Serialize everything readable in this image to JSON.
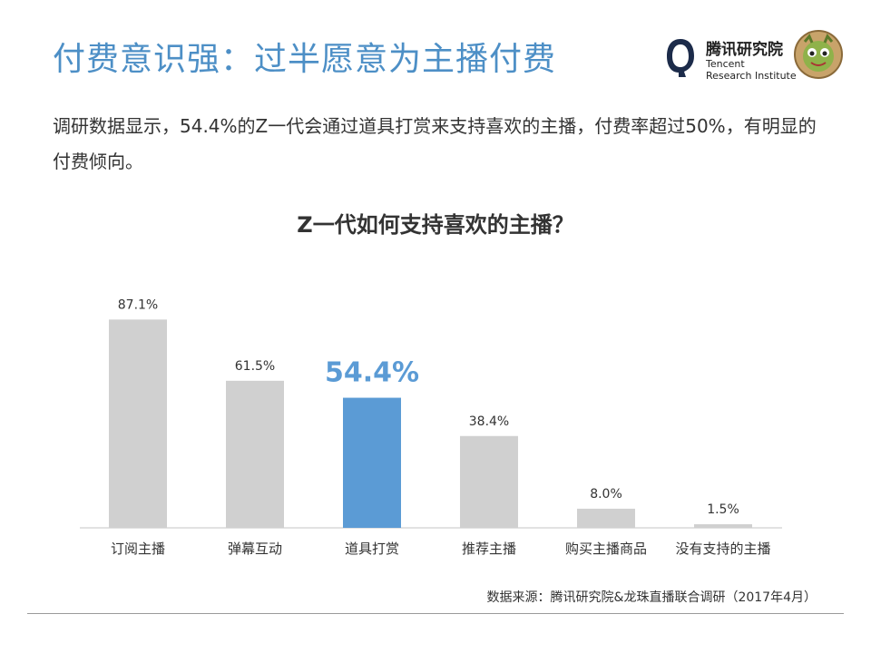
{
  "slide": {
    "title": "付费意识强：过半愿意为主播付费",
    "intro": "调研数据显示，54.4%的Z一代会通过道具打赏来支持喜欢的主播，付费率超过50%，有明显的付费倾向。",
    "source": "数据来源：腾讯研究院&龙珠直播联合调研（2017年4月）"
  },
  "logo": {
    "name_cn": "腾讯研究院",
    "name_en_line1": "Tencent",
    "name_en_line2": "Research Institute",
    "icon": "penguin-logo-icon",
    "mascot_icon": "mascot-icon"
  },
  "colors": {
    "title": "#4d8fc6",
    "bar_default": "#d0d0d0",
    "bar_highlight": "#5b9bd5",
    "highlight_label": "#5b9bd5"
  },
  "chart_data": {
    "type": "bar",
    "title": "Z一代如何支持喜欢的主播？",
    "categories": [
      "订阅主播",
      "弹幕互动",
      "道具打赏",
      "推荐主播",
      "购买主播商品",
      "没有支持的主播"
    ],
    "values": [
      87.1,
      61.5,
      54.4,
      38.4,
      8.0,
      1.5
    ],
    "value_labels": [
      "87.1%",
      "61.5%",
      "54.4%",
      "38.4%",
      "8.0%",
      "1.5%"
    ],
    "highlight_index": 2,
    "unit": "%",
    "ylim": [
      0,
      100
    ],
    "grid": false,
    "legend": "none"
  }
}
